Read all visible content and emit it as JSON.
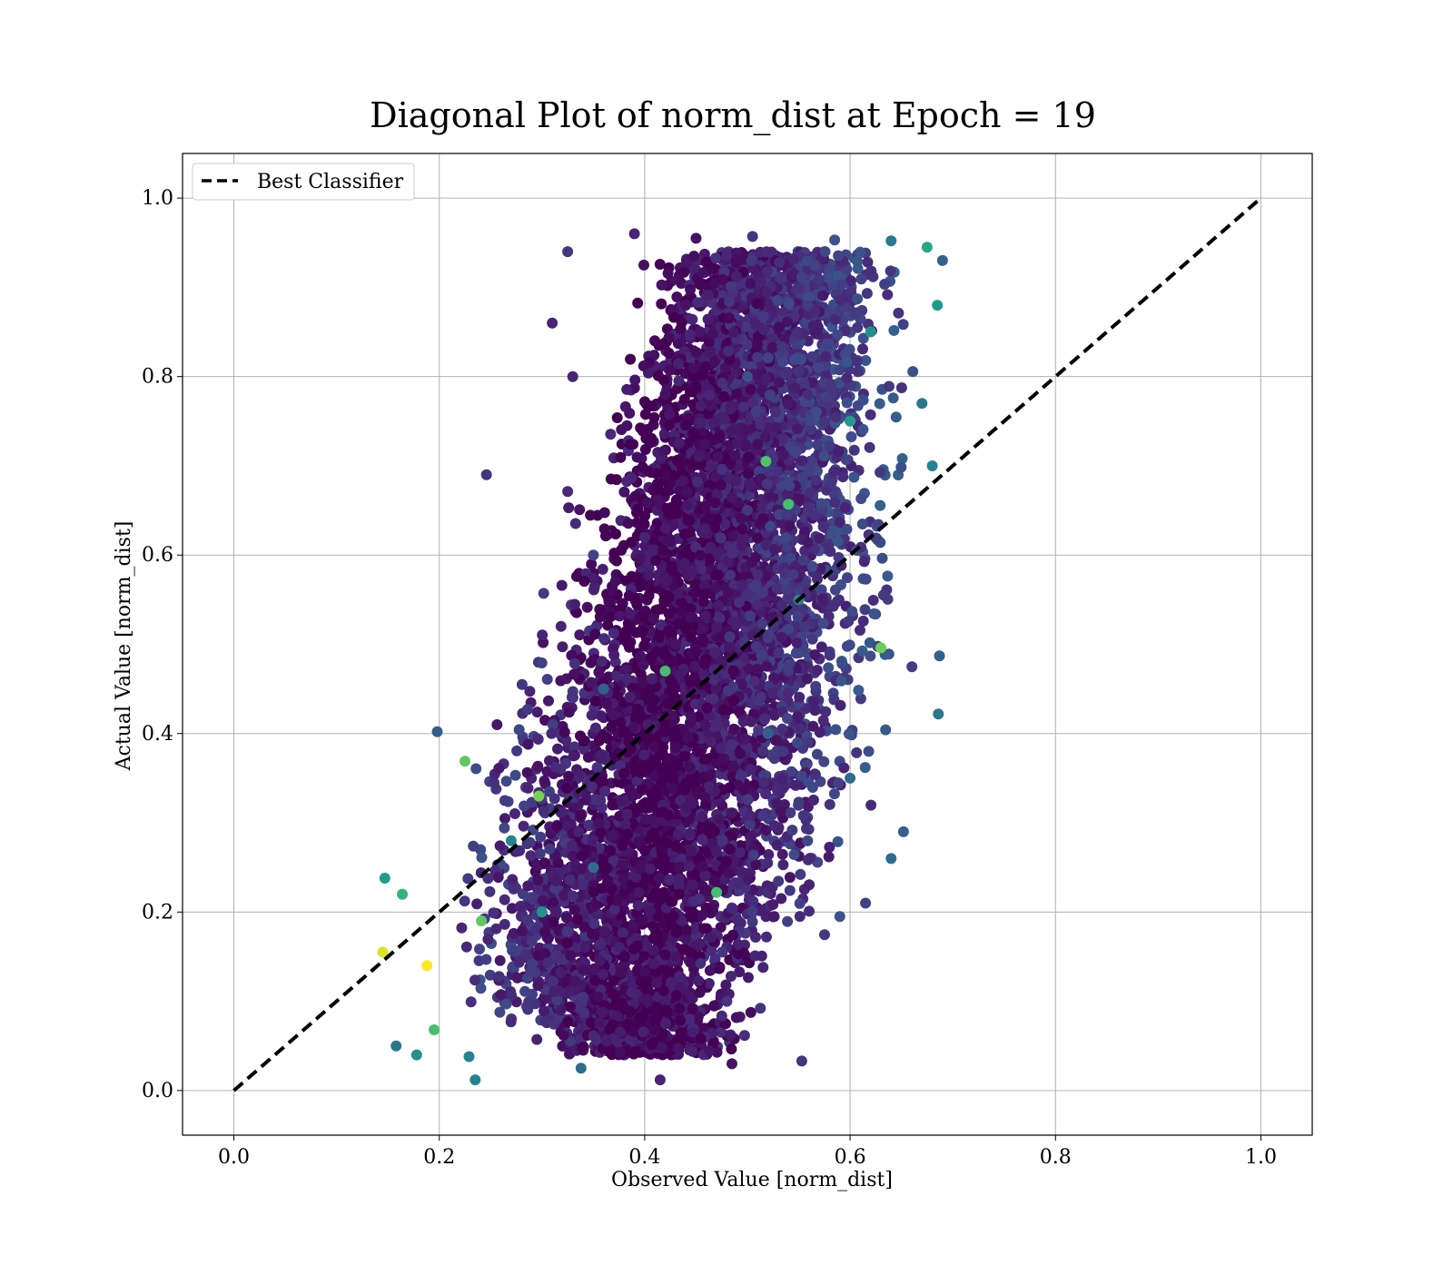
{
  "chart_data": {
    "type": "scatter",
    "title": "Diagonal Plot of norm_dist at Epoch = 19",
    "xlabel": "Observed Value [norm_dist]",
    "ylabel": "Actual Value [norm_dist]",
    "xlim": [
      -0.05,
      1.05
    ],
    "ylim": [
      -0.05,
      1.05
    ],
    "xticks": [
      0.0,
      0.2,
      0.4,
      0.6,
      0.8,
      1.0
    ],
    "yticks": [
      0.0,
      0.2,
      0.4,
      0.6,
      0.8,
      1.0
    ],
    "xtick_labels": [
      "0.0",
      "0.2",
      "0.4",
      "0.6",
      "0.8",
      "1.0"
    ],
    "ytick_labels": [
      "0.0",
      "0.2",
      "0.4",
      "0.6",
      "0.8",
      "1.0"
    ],
    "grid": true,
    "legend": {
      "position": "top-left",
      "entries": [
        "Best Classifier"
      ]
    },
    "colormap": "viridis",
    "reference_line": {
      "name": "Best Classifier",
      "x": [
        0.0,
        1.0
      ],
      "y": [
        0.0,
        1.0
      ],
      "style": "dashed",
      "color": "#000000"
    },
    "scatter_points": [
      {
        "x": 0.145,
        "y": 0.155,
        "c": 0.95
      },
      {
        "x": 0.188,
        "y": 0.14,
        "c": 1.0
      },
      {
        "x": 0.147,
        "y": 0.238,
        "c": 0.55
      },
      {
        "x": 0.158,
        "y": 0.05,
        "c": 0.4
      },
      {
        "x": 0.235,
        "y": 0.012,
        "c": 0.45
      },
      {
        "x": 0.198,
        "y": 0.402,
        "c": 0.3
      },
      {
        "x": 0.246,
        "y": 0.69,
        "c": 0.15
      },
      {
        "x": 0.325,
        "y": 0.94,
        "c": 0.15
      },
      {
        "x": 0.39,
        "y": 0.96,
        "c": 0.1
      },
      {
        "x": 0.45,
        "y": 0.955,
        "c": 0.05
      },
      {
        "x": 0.505,
        "y": 0.957,
        "c": 0.15
      },
      {
        "x": 0.585,
        "y": 0.953,
        "c": 0.25
      },
      {
        "x": 0.64,
        "y": 0.952,
        "c": 0.4
      },
      {
        "x": 0.675,
        "y": 0.945,
        "c": 0.6
      },
      {
        "x": 0.69,
        "y": 0.93,
        "c": 0.3
      },
      {
        "x": 0.685,
        "y": 0.88,
        "c": 0.55
      },
      {
        "x": 0.67,
        "y": 0.77,
        "c": 0.4
      },
      {
        "x": 0.68,
        "y": 0.7,
        "c": 0.45
      },
      {
        "x": 0.687,
        "y": 0.487,
        "c": 0.3
      },
      {
        "x": 0.686,
        "y": 0.422,
        "c": 0.4
      },
      {
        "x": 0.652,
        "y": 0.29,
        "c": 0.3
      },
      {
        "x": 0.64,
        "y": 0.26,
        "c": 0.35
      },
      {
        "x": 0.615,
        "y": 0.21,
        "c": 0.2
      },
      {
        "x": 0.59,
        "y": 0.195,
        "c": 0.25
      },
      {
        "x": 0.553,
        "y": 0.033,
        "c": 0.15
      },
      {
        "x": 0.485,
        "y": 0.03,
        "c": 0.05
      },
      {
        "x": 0.415,
        "y": 0.012,
        "c": 0.1
      },
      {
        "x": 0.338,
        "y": 0.025,
        "c": 0.35
      },
      {
        "x": 0.229,
        "y": 0.038,
        "c": 0.45
      },
      {
        "x": 0.178,
        "y": 0.04,
        "c": 0.5
      },
      {
        "x": 0.195,
        "y": 0.068,
        "c": 0.7
      },
      {
        "x": 0.225,
        "y": 0.369,
        "c": 0.75
      },
      {
        "x": 0.297,
        "y": 0.33,
        "c": 0.8
      },
      {
        "x": 0.42,
        "y": 0.47,
        "c": 0.7
      },
      {
        "x": 0.518,
        "y": 0.705,
        "c": 0.72
      },
      {
        "x": 0.54,
        "y": 0.657,
        "c": 0.7
      },
      {
        "x": 0.63,
        "y": 0.496,
        "c": 0.78
      },
      {
        "x": 0.47,
        "y": 0.222,
        "c": 0.7
      },
      {
        "x": 0.241,
        "y": 0.19,
        "c": 0.75
      },
      {
        "x": 0.164,
        "y": 0.22,
        "c": 0.65
      },
      {
        "x": 0.31,
        "y": 0.86,
        "c": 0.1
      },
      {
        "x": 0.33,
        "y": 0.8,
        "c": 0.1
      },
      {
        "x": 0.44,
        "y": 0.88,
        "c": 0.05
      },
      {
        "x": 0.42,
        "y": 0.78,
        "c": 0.05
      },
      {
        "x": 0.4,
        "y": 0.62,
        "c": 0.1
      },
      {
        "x": 0.43,
        "y": 0.5,
        "c": 0.05
      },
      {
        "x": 0.41,
        "y": 0.3,
        "c": 0.05
      },
      {
        "x": 0.43,
        "y": 0.15,
        "c": 0.05
      },
      {
        "x": 0.35,
        "y": 0.25,
        "c": 0.35
      },
      {
        "x": 0.3,
        "y": 0.2,
        "c": 0.5
      },
      {
        "x": 0.27,
        "y": 0.28,
        "c": 0.45
      },
      {
        "x": 0.55,
        "y": 0.55,
        "c": 0.45
      },
      {
        "x": 0.6,
        "y": 0.75,
        "c": 0.55
      },
      {
        "x": 0.62,
        "y": 0.85,
        "c": 0.5
      },
      {
        "x": 0.52,
        "y": 0.4,
        "c": 0.3
      },
      {
        "x": 0.6,
        "y": 0.35,
        "c": 0.35
      },
      {
        "x": 0.36,
        "y": 0.45,
        "c": 0.3
      },
      {
        "x": 0.35,
        "y": 0.6,
        "c": 0.2
      },
      {
        "x": 0.5,
        "y": 0.8,
        "c": 0.25
      },
      {
        "x": 0.48,
        "y": 0.1,
        "c": 0.15
      }
    ],
    "scatter_density": [
      {
        "y": 0.05,
        "x_range": [
          0.29,
          0.52
        ]
      },
      {
        "y": 0.1,
        "x_range": [
          0.2,
          0.53
        ]
      },
      {
        "y": 0.2,
        "x_range": [
          0.17,
          0.6
        ]
      },
      {
        "y": 0.3,
        "x_range": [
          0.2,
          0.64
        ]
      },
      {
        "y": 0.4,
        "x_range": [
          0.23,
          0.66
        ]
      },
      {
        "y": 0.5,
        "x_range": [
          0.27,
          0.67
        ]
      },
      {
        "y": 0.6,
        "x_range": [
          0.3,
          0.67
        ]
      },
      {
        "y": 0.7,
        "x_range": [
          0.32,
          0.67
        ]
      },
      {
        "y": 0.8,
        "x_range": [
          0.35,
          0.67
        ]
      },
      {
        "y": 0.9,
        "x_range": [
          0.38,
          0.67
        ]
      }
    ]
  }
}
